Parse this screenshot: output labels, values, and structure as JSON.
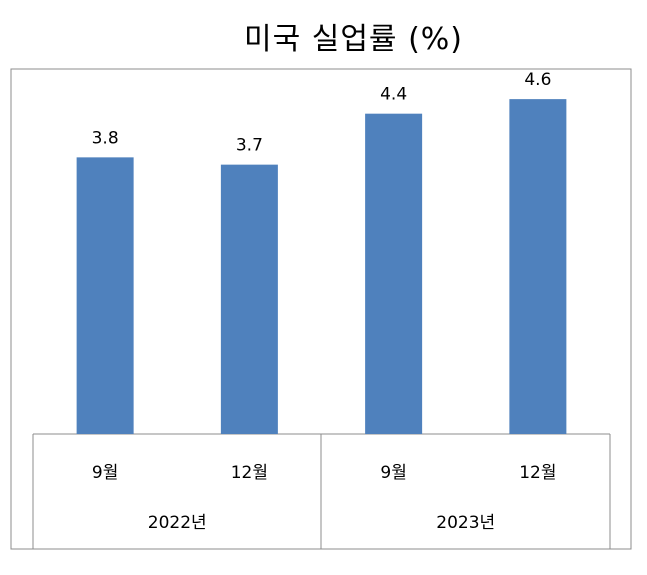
{
  "chart_data": {
    "type": "bar",
    "title": "미국 실업률 (%)",
    "categories": [
      "9월",
      "12월",
      "9월",
      "12월"
    ],
    "groups": [
      {
        "label": "2022년",
        "categories": [
          "9월",
          "12월"
        ]
      },
      {
        "label": "2023년",
        "categories": [
          "9월",
          "12월"
        ]
      }
    ],
    "values": [
      3.8,
      3.7,
      4.4,
      4.6
    ],
    "value_labels": [
      "3.8",
      "3.7",
      "4.4",
      "4.6"
    ],
    "ylim": [
      0,
      5
    ],
    "grid": false,
    "bar_color": "#4f81bd"
  }
}
